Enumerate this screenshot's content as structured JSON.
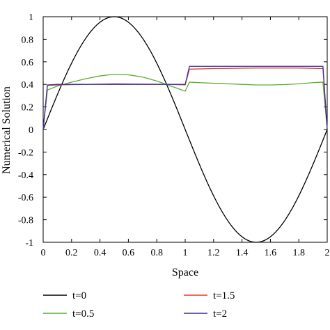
{
  "chart_data": {
    "type": "line",
    "title": "",
    "xlabel": "Space",
    "ylabel": "Numerical Solution",
    "xlim": [
      0,
      2
    ],
    "ylim": [
      -1,
      1
    ],
    "xticks": [
      "0",
      "0.2",
      "0.4",
      "0.6",
      "0.8",
      "1",
      "1.2",
      "1.4",
      "1.6",
      "1.8",
      "2"
    ],
    "yticks": [
      "1",
      "0.8",
      "0.6",
      "0.4",
      "0.2",
      "0",
      "-0.2",
      "-0.4",
      "-0.6",
      "-0.8",
      "-1"
    ],
    "grid": false,
    "legend_position": "bottom",
    "series": [
      {
        "name": "t=0",
        "color": "#000000",
        "function": "sin(pi*x)"
      },
      {
        "name": "t=0.5",
        "color": "#5aac2e",
        "x": [
          0,
          0.03,
          0.1,
          0.2,
          0.3,
          0.4,
          0.5,
          0.6,
          0.7,
          0.8,
          0.9,
          1.0,
          1.03,
          1.1,
          1.2,
          1.3,
          1.4,
          1.5,
          1.6,
          1.7,
          1.8,
          1.9,
          1.97,
          2.0
        ],
        "y": [
          0,
          0.35,
          0.385,
          0.42,
          0.45,
          0.475,
          0.49,
          0.485,
          0.465,
          0.43,
          0.385,
          0.34,
          0.42,
          0.415,
          0.41,
          0.405,
          0.4,
          0.395,
          0.395,
          0.398,
          0.405,
          0.415,
          0.42,
          0
        ]
      },
      {
        "name": "t=1.5",
        "color": "#e23a2c",
        "x": [
          0,
          0.03,
          0.1,
          0.5,
          0.9,
          1.0,
          1.03,
          1.2,
          1.5,
          1.8,
          1.97,
          2.0
        ],
        "y": [
          0,
          0.39,
          0.395,
          0.405,
          0.4,
          0.395,
          0.535,
          0.54,
          0.545,
          0.545,
          0.54,
          0
        ]
      },
      {
        "name": "t=2",
        "color": "#3a2fa0",
        "x": [
          0,
          0.03,
          0.1,
          0.5,
          0.9,
          1.0,
          1.03,
          1.2,
          1.5,
          1.8,
          1.97,
          2.0
        ],
        "y": [
          0,
          0.395,
          0.4,
          0.4,
          0.4,
          0.4,
          0.56,
          0.56,
          0.56,
          0.56,
          0.56,
          0
        ]
      }
    ]
  }
}
